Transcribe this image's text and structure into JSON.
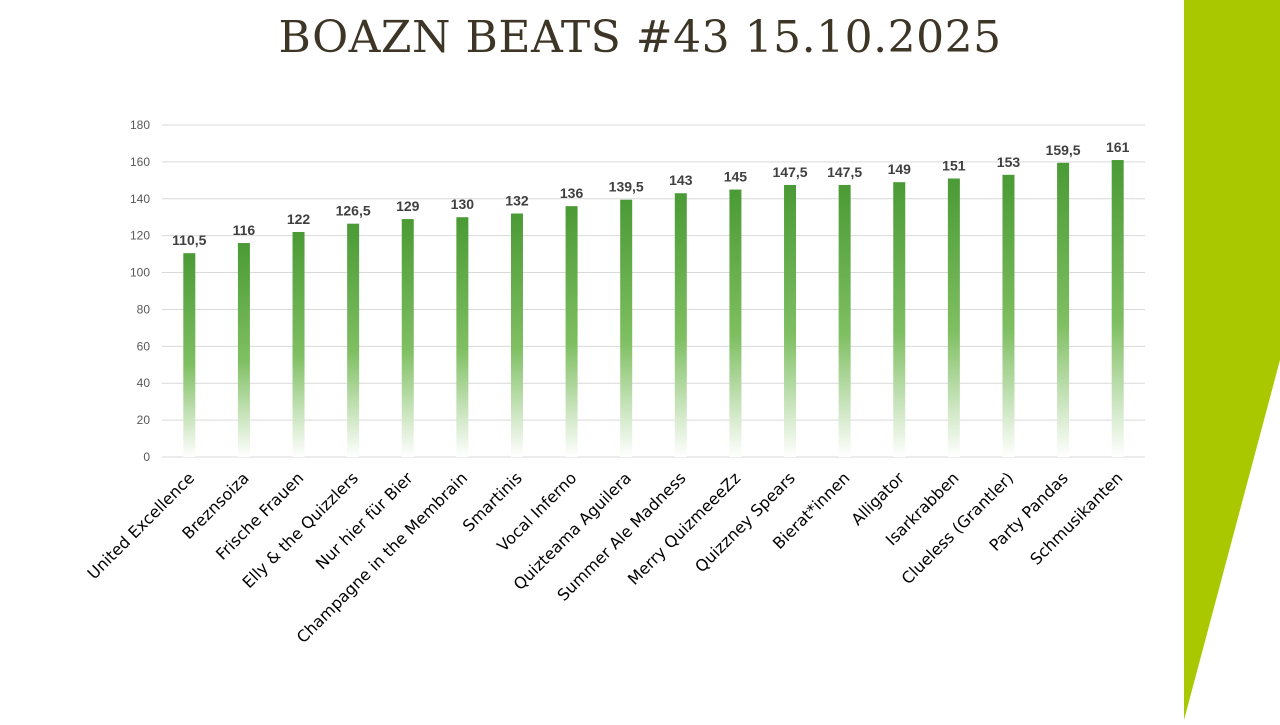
{
  "slide": {
    "title": "BOAZN BEATS #43 15.10.2025"
  },
  "colors": {
    "accent": "#a9c800",
    "bar_top": "#4a9a35",
    "bar_bottom": "#ffffff",
    "title": "#3d3526",
    "gridline": "#d9d9d9"
  },
  "chart_data": {
    "type": "bar",
    "categories": [
      "United Excellence",
      "Breznsoiza",
      "Frische Frauen",
      "Elly & the Quizzlers",
      "Nur hier für Bier",
      "Champagne in the Membrain",
      "Smartinis",
      "Vocal Inferno",
      "Quizteama Aguilera",
      "Summer Ale Madness",
      "Merry QuizmeeeZz",
      "Quizzney Spears",
      "Bierat*innen",
      "Alligator",
      "Isarkrabben",
      "Clueless (Grantler)",
      "Party Pandas",
      "Schmusikanten"
    ],
    "values": [
      110.5,
      116,
      122,
      126.5,
      129,
      130,
      132,
      136,
      139.5,
      143,
      145,
      147.5,
      147.5,
      149,
      151,
      153,
      159.5,
      161
    ],
    "value_labels": [
      "110,5",
      "116",
      "122",
      "126,5",
      "129",
      "130",
      "132",
      "136",
      "139,5",
      "143",
      "145",
      "147,5",
      "147,5",
      "149",
      "151",
      "153",
      "159,5",
      "161"
    ],
    "y_ticks": [
      "0",
      "20",
      "40",
      "60",
      "80",
      "100",
      "120",
      "140",
      "160",
      "180"
    ],
    "ylim": [
      0,
      180
    ],
    "grid": true,
    "legend": "none",
    "title": "BOAZN BEATS #43 15.10.2025",
    "xlabel": "",
    "ylabel": ""
  }
}
